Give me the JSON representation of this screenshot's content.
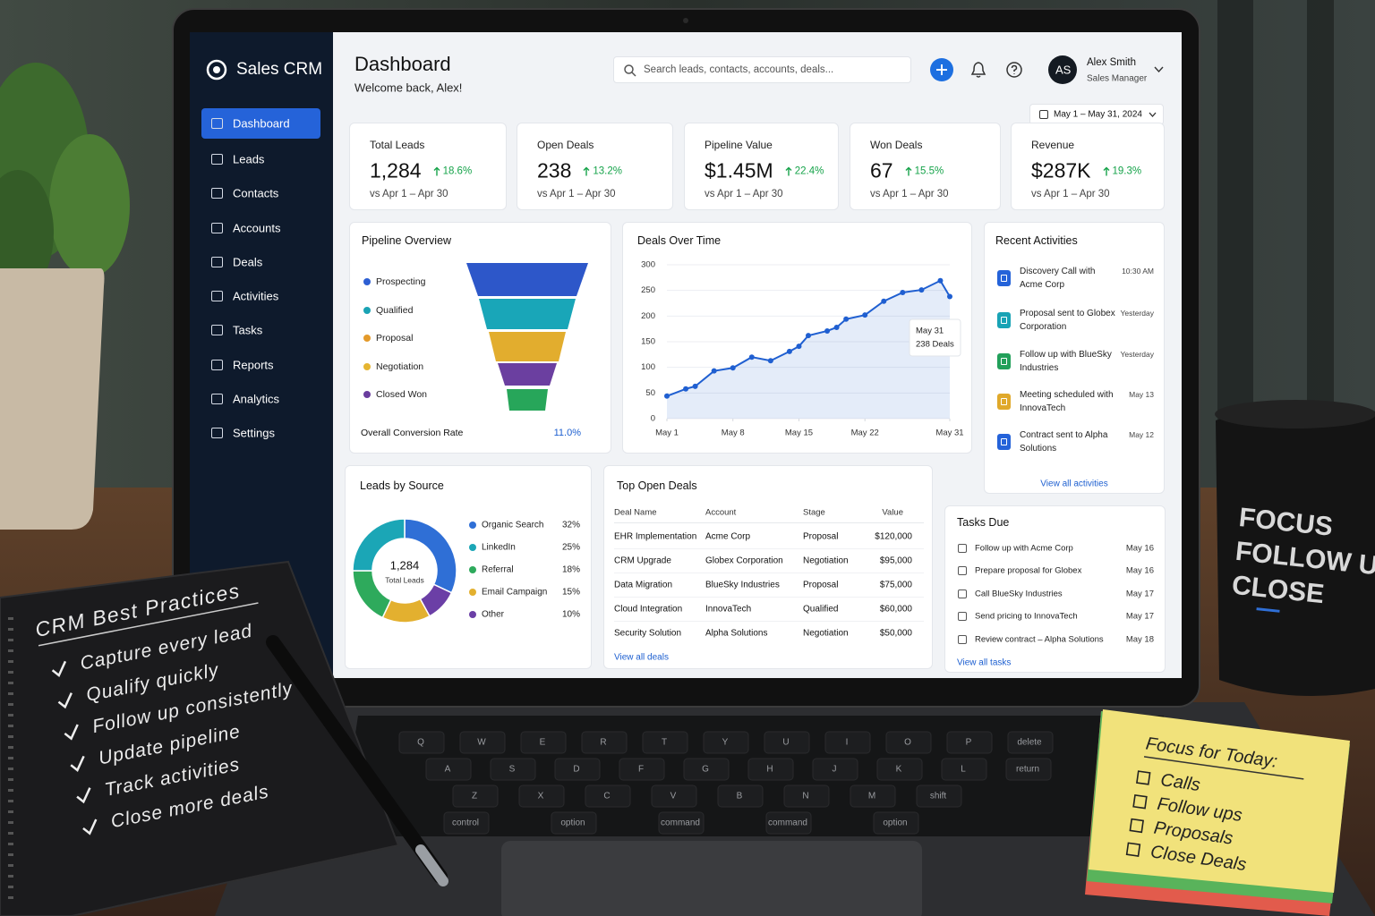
{
  "scene": {
    "notebook": {
      "title": "CRM Best Practices",
      "items": [
        "Capture every lead",
        "Qualify quickly",
        "Follow up consistently",
        "Update pipeline",
        "Track activities",
        "Close more deals"
      ]
    },
    "mug": {
      "lines": [
        "FOCUS",
        "FOLLOW UP",
        "CLOSE"
      ]
    },
    "sticky_note": {
      "title": "Focus for Today:",
      "items": [
        "Calls",
        "Follow ups",
        "Proposals",
        "Close Deals"
      ]
    },
    "keyboard": {
      "rows": [
        [
          "Q",
          "W",
          "E",
          "R",
          "T",
          "Y",
          "U",
          "I",
          "O",
          "P",
          "delete"
        ],
        [
          "A",
          "S",
          "D",
          "F",
          "G",
          "H",
          "J",
          "K",
          "L",
          "return"
        ],
        [
          "Z",
          "X",
          "C",
          "V",
          "B",
          "N",
          "M",
          "shift"
        ],
        [
          "control",
          "option",
          "command",
          "command",
          "option"
        ]
      ]
    }
  },
  "app": {
    "brand": "Sales CRM",
    "nav": [
      {
        "label": "Dashboard",
        "active": true
      },
      {
        "label": "Leads",
        "active": false
      },
      {
        "label": "Contacts",
        "active": false
      },
      {
        "label": "Accounts",
        "active": false
      },
      {
        "label": "Deals",
        "active": false
      },
      {
        "label": "Activities",
        "active": false
      },
      {
        "label": "Tasks",
        "active": false
      },
      {
        "label": "Reports",
        "active": false
      },
      {
        "label": "Analytics",
        "active": false
      },
      {
        "label": "Settings",
        "active": false
      }
    ],
    "header": {
      "title": "Dashboard",
      "subtitle": "Welcome back, Alex!",
      "search_placeholder": "Search leads, contacts, accounts, deals...",
      "user": {
        "initials": "AS",
        "name": "Alex Smith",
        "role": "Sales Manager"
      },
      "date_range": "May 1 – May 31, 2024"
    },
    "kpis": [
      {
        "label": "Total Leads",
        "value": "1,284",
        "change": "18.6%",
        "comparison": "vs Apr 1 – Apr 30"
      },
      {
        "label": "Open Deals",
        "value": "238",
        "change": "13.2%",
        "comparison": "vs Apr 1 – Apr 30"
      },
      {
        "label": "Pipeline Value",
        "value": "$1.45M",
        "change": "22.4%",
        "comparison": "vs Apr 1 – Apr 30"
      },
      {
        "label": "Won Deals",
        "value": "67",
        "change": "15.5%",
        "comparison": "vs Apr 1 – Apr 30"
      },
      {
        "label": "Revenue",
        "value": "$287K",
        "change": "19.3%",
        "comparison": "vs Apr 1 – Apr 30"
      }
    ],
    "pipeline": {
      "title": "Pipeline Overview",
      "stages": [
        {
          "name": "Prospecting",
          "color": "#2d5fd3"
        },
        {
          "name": "Qualified",
          "color": "#1aa3b4"
        },
        {
          "name": "Proposal",
          "color": "#e49a2a"
        },
        {
          "name": "Negotiation",
          "color": "#e5b531"
        },
        {
          "name": "Closed Won",
          "color": "#6a3d9e"
        }
      ],
      "funnel_colors": [
        "#2d57c9",
        "#19a6b8",
        "#e2ad2e",
        "#6b3fa0",
        "#27a65a"
      ],
      "conversion_label": "Overall Conversion Rate",
      "conversion_value": "11.0%"
    },
    "recent_activities": {
      "title": "Recent Activities",
      "link": "View all activities",
      "items": [
        {
          "text": "Discovery Call with Acme Corp",
          "time": "10:30 AM",
          "color": "#2563d9"
        },
        {
          "text": "Proposal sent to Globex Corporation",
          "time": "Yesterday",
          "color": "#19a3b5"
        },
        {
          "text": "Follow up with BlueSky Industries",
          "time": "Yesterday",
          "color": "#22a05a"
        },
        {
          "text": "Meeting scheduled with InnovaTech",
          "time": "May 13",
          "color": "#e0a92b"
        },
        {
          "text": "Contract sent to Alpha Solutions",
          "time": "May 12",
          "color": "#2563d9"
        }
      ]
    },
    "top_deals": {
      "title": "Top Open Deals",
      "columns": [
        "Deal Name",
        "Account",
        "Stage",
        "Value"
      ],
      "rows": [
        [
          "EHR Implementation",
          "Acme Corp",
          "Proposal",
          "$120,000"
        ],
        [
          "CRM Upgrade",
          "Globex Corporation",
          "Negotiation",
          "$95,000"
        ],
        [
          "Data Migration",
          "BlueSky Industries",
          "Proposal",
          "$75,000"
        ],
        [
          "Cloud Integration",
          "InnovaTech",
          "Qualified",
          "$60,000"
        ],
        [
          "Security Solution",
          "Alpha Solutions",
          "Negotiation",
          "$50,000"
        ]
      ],
      "link": "View all deals"
    },
    "tasks": {
      "title": "Tasks Due",
      "link": "View all tasks",
      "items": [
        {
          "text": "Follow up with Acme Corp",
          "date": "May 16"
        },
        {
          "text": "Prepare proposal for Globex",
          "date": "May 16"
        },
        {
          "text": "Call BlueSky Industries",
          "date": "May 17"
        },
        {
          "text": "Send pricing to InnovaTech",
          "date": "May 17"
        },
        {
          "text": "Review contract – Alpha Solutions",
          "date": "May 18"
        }
      ]
    }
  },
  "chart_data": [
    {
      "type": "line",
      "title": "Deals Over Time",
      "x": [
        1,
        3,
        4,
        6,
        8,
        10,
        12,
        14,
        15,
        16,
        18,
        19,
        20,
        22,
        24,
        26,
        28,
        30,
        31
      ],
      "values": [
        44,
        58,
        63,
        93,
        99,
        120,
        113,
        131,
        141,
        162,
        171,
        178,
        194,
        202,
        229,
        246,
        251,
        269,
        238
      ],
      "color": "#1f5fd1",
      "xlim": [
        1,
        31
      ],
      "ylim": [
        0,
        300
      ],
      "xticks": [
        {
          "value": 1,
          "label": "May 1"
        },
        {
          "value": 8,
          "label": "May 8"
        },
        {
          "value": 15,
          "label": "May 15"
        },
        {
          "value": 22,
          "label": "May 22"
        },
        {
          "value": 31,
          "label": "May 31"
        }
      ],
      "yticks": [
        0,
        50,
        100,
        150,
        200,
        250,
        300
      ],
      "grid": true,
      "tooltip": {
        "title": "May 31",
        "text": "238 Deals"
      }
    },
    {
      "type": "donut",
      "title": "Leads by Source",
      "categories": [
        "Organic Search",
        "LinkedIn",
        "Referral",
        "Email Campaign",
        "Other"
      ],
      "values": [
        32,
        25,
        18,
        15,
        10
      ],
      "value_labels": [
        "32%",
        "25%",
        "18%",
        "15%",
        "10%"
      ],
      "colors": [
        "#2f6fd6",
        "#1ba6b6",
        "#2eaa5c",
        "#e3b02f",
        "#6b3fa6"
      ],
      "center_value": "1,284",
      "center_label": "Total Leads"
    }
  ]
}
